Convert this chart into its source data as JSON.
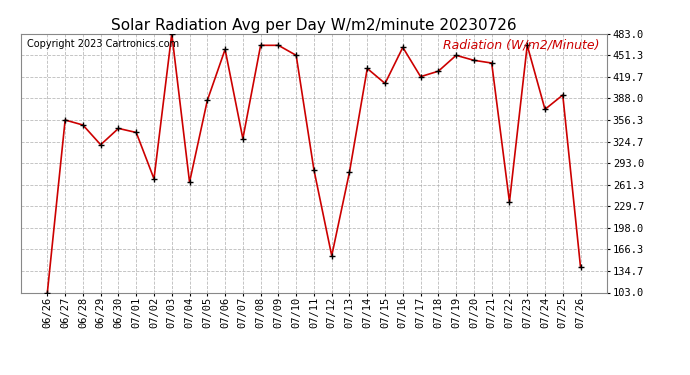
{
  "title": "Solar Radiation Avg per Day W/m2/minute 20230726",
  "copyright": "Copyright 2023 Cartronics.com",
  "legend_label": "Radiation (W/m2/Minute)",
  "dates": [
    "06/26",
    "06/27",
    "06/28",
    "06/29",
    "06/30",
    "07/01",
    "07/02",
    "07/03",
    "07/04",
    "07/05",
    "07/06",
    "07/07",
    "07/08",
    "07/09",
    "07/10",
    "07/11",
    "07/12",
    "07/13",
    "07/14",
    "07/15",
    "07/16",
    "07/17",
    "07/18",
    "07/19",
    "07/20",
    "07/21",
    "07/22",
    "07/23",
    "07/24",
    "07/25",
    "07/26"
  ],
  "values": [
    103.0,
    356.3,
    349.0,
    320.0,
    344.0,
    338.0,
    270.0,
    483.0,
    265.0,
    385.0,
    460.0,
    329.0,
    466.0,
    466.0,
    451.3,
    283.0,
    157.0,
    280.0,
    432.0,
    410.0,
    463.0,
    420.0,
    428.0,
    451.3,
    444.0,
    440.0,
    236.0,
    466.0,
    372.0,
    393.0,
    140.0
  ],
  "line_color": "#cc0000",
  "marker_color": "#000000",
  "background_color": "#ffffff",
  "grid_color": "#aaaaaa",
  "title_color": "#000000",
  "copyright_color": "#000000",
  "legend_color": "#cc0000",
  "ylim": [
    103.0,
    483.0
  ],
  "yticks": [
    103.0,
    134.7,
    166.3,
    198.0,
    229.7,
    261.3,
    293.0,
    324.7,
    356.3,
    388.0,
    419.7,
    451.3,
    483.0
  ],
  "title_fontsize": 11,
  "copyright_fontsize": 7,
  "legend_fontsize": 9,
  "tick_fontsize": 7.5
}
